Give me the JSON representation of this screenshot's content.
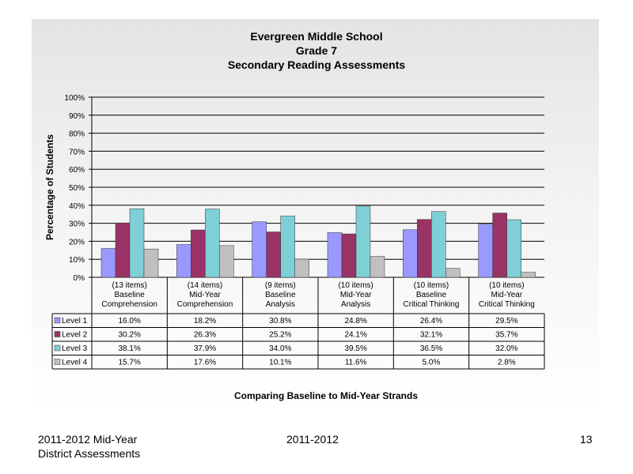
{
  "chart_data": {
    "type": "bar",
    "title": [
      "Evergreen Middle School",
      "Grade 7",
      "Secondary Reading Assessments"
    ],
    "ylabel": "Percentage of Students",
    "xlabel": "Comparing Baseline to Mid-Year Strands",
    "ylim": [
      0,
      100
    ],
    "yticks": [
      "0%",
      "10%",
      "20%",
      "30%",
      "40%",
      "50%",
      "60%",
      "70%",
      "80%",
      "90%",
      "100%"
    ],
    "grid": true,
    "categories": [
      [
        "(13 items)",
        "Baseline",
        "Comprehension"
      ],
      [
        "(14 items)",
        "Mid-Year",
        "Comprehension"
      ],
      [
        "(9 items)",
        "Baseline",
        "Analysis"
      ],
      [
        "(10 items)",
        "Mid-Year",
        "Analysis"
      ],
      [
        "(10 items)",
        "Baseline",
        "Critical Thinking"
      ],
      [
        "(10 items)",
        "Mid-Year",
        "Critical Thinking"
      ]
    ],
    "series": [
      {
        "name": "Level 1",
        "color": "#9999ff",
        "values": [
          16.0,
          18.2,
          30.8,
          24.8,
          26.4,
          29.5
        ],
        "labels": [
          "16.0%",
          "18.2%",
          "30.8%",
          "24.8%",
          "26.4%",
          "29.5%"
        ]
      },
      {
        "name": "Level 2",
        "color": "#993366",
        "values": [
          30.2,
          26.3,
          25.2,
          24.1,
          32.1,
          35.7
        ],
        "labels": [
          "30.2%",
          "26.3%",
          "25.2%",
          "24.1%",
          "32.1%",
          "35.7%"
        ]
      },
      {
        "name": "Level 3",
        "color": "#7fcfd6",
        "values": [
          38.1,
          37.9,
          34.0,
          39.5,
          36.5,
          32.0
        ],
        "labels": [
          "38.1%",
          "37.9%",
          "34.0%",
          "39.5%",
          "36.5%",
          "32.0%"
        ]
      },
      {
        "name": "Level 4",
        "color": "#c0c0c0",
        "values": [
          15.7,
          17.6,
          10.1,
          11.6,
          5.0,
          2.8
        ],
        "labels": [
          "15.7%",
          "17.6%",
          "10.1%",
          "11.6%",
          "5.0%",
          "2.8%"
        ]
      }
    ]
  },
  "footer": {
    "left_line1": "2011-2012  Mid-Year",
    "left_line2": "District Assessments",
    "center": "2011-2012",
    "page": "13"
  }
}
